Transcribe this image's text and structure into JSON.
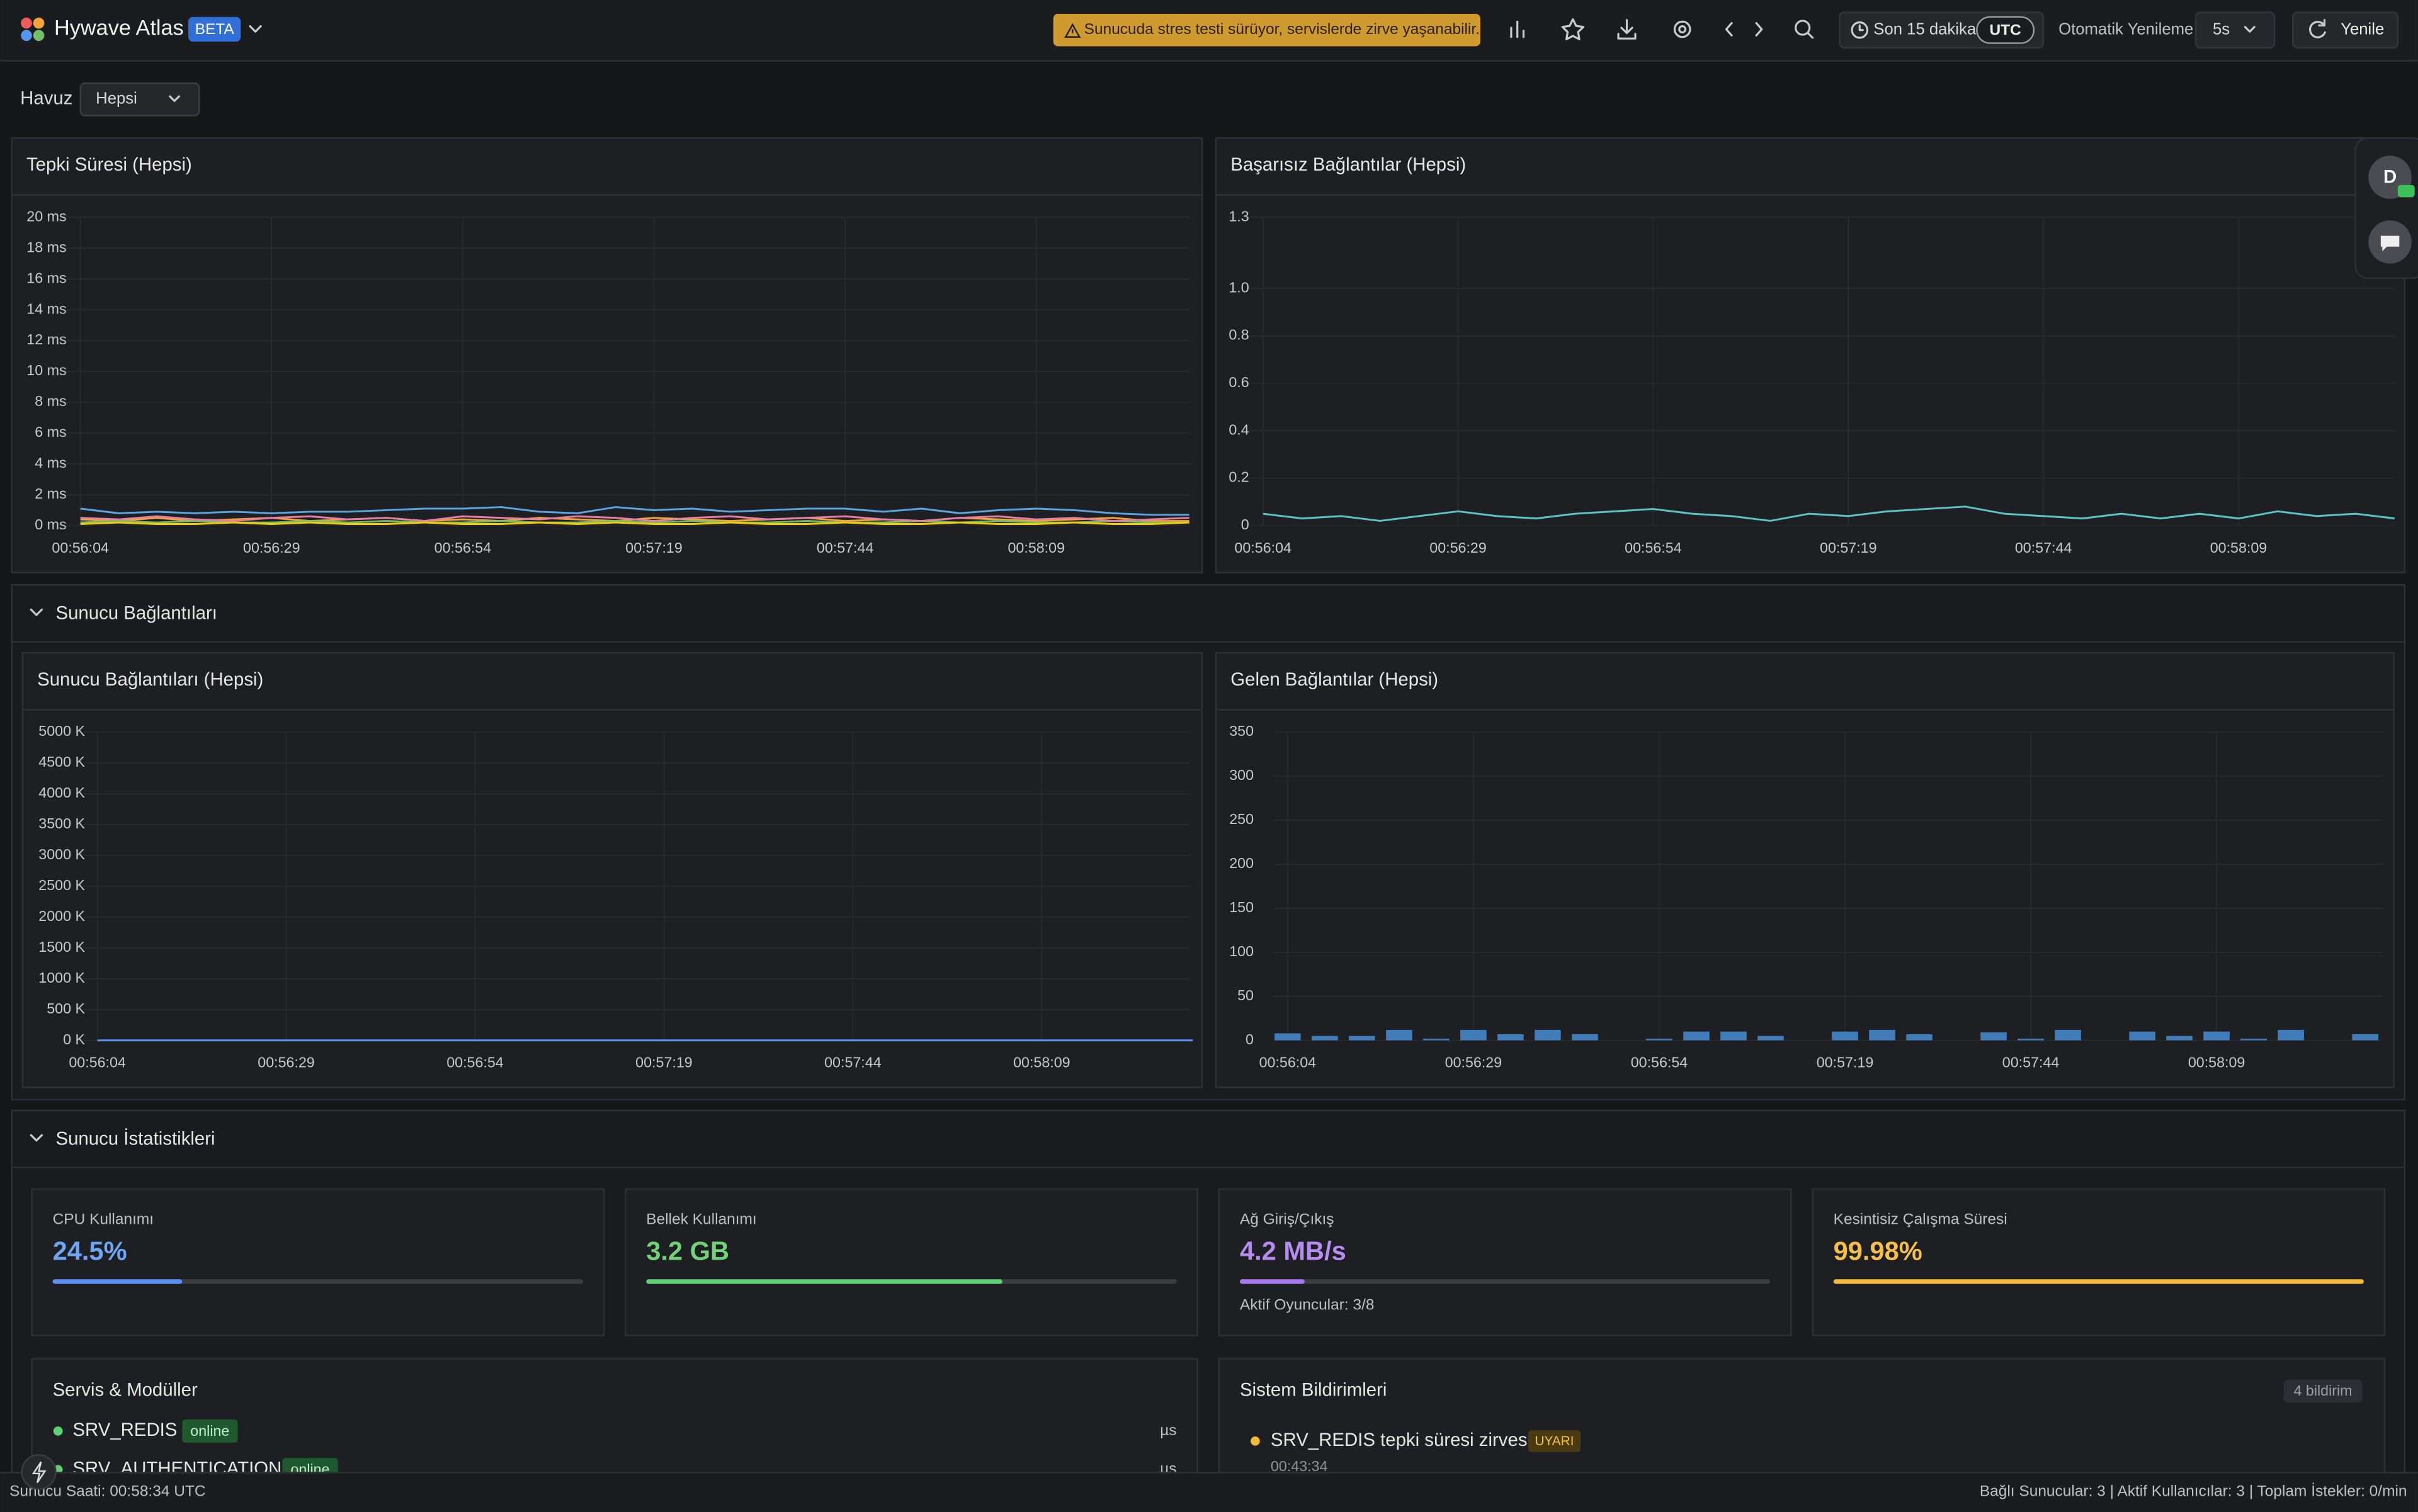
{
  "header": {
    "app_name": "Hywave Atlas",
    "badge": "BETA",
    "alert": "Sunucuda stres testi sürüyor, servislerde zirve yaşanabilir.",
    "time_range": "Son 15 dakika",
    "timezone": "UTC",
    "auto_refresh_label": "Otomatik Yenileme",
    "auto_refresh_value": "5s",
    "refresh_button": "Yenile"
  },
  "filter": {
    "label": "Havuz",
    "value": "Hepsi"
  },
  "sections": [
    "Sunucu Bağlantıları",
    "Sunucu İstatistikleri"
  ],
  "chart_data": [
    {
      "type": "line",
      "title": "Tepki Süresi (Hepsi)",
      "categories": [
        "00:56:04",
        null,
        null,
        null,
        null,
        "00:56:29",
        null,
        null,
        null,
        null,
        "00:56:54",
        null,
        null,
        null,
        null,
        "00:57:19",
        null,
        null,
        null,
        null,
        "00:57:44",
        null,
        null,
        null,
        null,
        "00:58:09",
        null,
        null,
        null,
        null
      ],
      "ylim": [
        0,
        20
      ],
      "yticks": [
        {
          "value": 0,
          "label": "0 ms"
        },
        {
          "value": 2,
          "label": "2 ms"
        },
        {
          "value": 4,
          "label": "4 ms"
        },
        {
          "value": 6,
          "label": "6 ms"
        },
        {
          "value": 8,
          "label": "8 ms"
        },
        {
          "value": 10,
          "label": "10 ms"
        },
        {
          "value": 12,
          "label": "12 ms"
        },
        {
          "value": 14,
          "label": "14 ms"
        },
        {
          "value": 16,
          "label": "16 ms"
        },
        {
          "value": 18,
          "label": "18 ms"
        },
        {
          "value": 20,
          "label": "20 ms"
        }
      ],
      "grid": true,
      "series": [
        {
          "color": "#5aa4e0",
          "values": [
            1.1,
            0.8,
            0.9,
            0.8,
            0.9,
            0.8,
            0.9,
            0.9,
            1.0,
            1.1,
            1.1,
            1.2,
            0.9,
            0.8,
            1.2,
            1.0,
            1.1,
            0.9,
            1.0,
            1.1,
            1.1,
            0.9,
            1.1,
            0.8,
            1.0,
            1.1,
            1.0,
            0.8,
            0.7,
            0.7
          ]
        },
        {
          "color": "#f2a33a",
          "values": [
            0.4,
            0.3,
            0.5,
            0.3,
            0.4,
            0.5,
            0.3,
            0.4,
            0.5,
            0.3,
            0.4,
            0.3,
            0.5,
            0.4,
            0.3,
            0.5,
            0.4,
            0.3,
            0.4,
            0.5,
            0.3,
            0.4,
            0.3,
            0.5,
            0.4,
            0.3,
            0.4,
            0.5,
            0.3,
            0.3
          ]
        },
        {
          "color": "#73bf69",
          "values": [
            0.2,
            0.3,
            0.2,
            0.3,
            0.2,
            0.2,
            0.3,
            0.2,
            0.3,
            0.2,
            0.2,
            0.3,
            0.2,
            0.2,
            0.3,
            0.2,
            0.3,
            0.2,
            0.2,
            0.3,
            0.2,
            0.2,
            0.3,
            0.2,
            0.3,
            0.2,
            0.2,
            0.3,
            0.2,
            0.2
          ]
        },
        {
          "color": "#e67fa6",
          "values": [
            0.5,
            0.4,
            0.6,
            0.4,
            0.3,
            0.5,
            0.6,
            0.4,
            0.5,
            0.3,
            0.6,
            0.5,
            0.4,
            0.6,
            0.5,
            0.3,
            0.5,
            0.6,
            0.4,
            0.5,
            0.6,
            0.4,
            0.3,
            0.5,
            0.6,
            0.4,
            0.5,
            0.3,
            0.4,
            0.5
          ]
        },
        {
          "color": "#f2cc0c",
          "values": [
            0.1,
            0.2,
            0.1,
            0.1,
            0.2,
            0.1,
            0.2,
            0.1,
            0.1,
            0.2,
            0.1,
            0.1,
            0.2,
            0.1,
            0.2,
            0.1,
            0.1,
            0.2,
            0.1,
            0.1,
            0.2,
            0.1,
            0.1,
            0.2,
            0.1,
            0.1,
            0.2,
            0.1,
            0.1,
            0.2
          ]
        }
      ]
    },
    {
      "type": "line",
      "title": "Başarısız Bağlantılar (Hepsi)",
      "categories": [
        "00:56:04",
        null,
        null,
        null,
        null,
        "00:56:29",
        null,
        null,
        null,
        null,
        "00:56:54",
        null,
        null,
        null,
        null,
        "00:57:19",
        null,
        null,
        null,
        null,
        "00:57:44",
        null,
        null,
        null,
        null,
        "00:58:09",
        null,
        null,
        null,
        null
      ],
      "ylim": [
        0,
        1.3
      ],
      "yticks": [
        0,
        0.2,
        0.4,
        0.6,
        0.8,
        {
          "value": 1,
          "label": "1.0"
        },
        1.3
      ],
      "grid": true,
      "color": "#5cc4c4",
      "values": [
        0.05,
        0.03,
        0.04,
        0.02,
        0.04,
        0.06,
        0.04,
        0.03,
        0.05,
        0.06,
        0.07,
        0.05,
        0.04,
        0.02,
        0.05,
        0.04,
        0.06,
        0.07,
        0.08,
        0.05,
        0.04,
        0.03,
        0.05,
        0.03,
        0.05,
        0.03,
        0.06,
        0.04,
        0.05,
        0.03
      ]
    },
    {
      "type": "line",
      "title": "Sunucu Bağlantıları (Hepsi)",
      "categories": [
        "00:56:04",
        null,
        null,
        null,
        null,
        "00:56:29",
        null,
        null,
        null,
        null,
        "00:56:54",
        null,
        null,
        null,
        null,
        "00:57:19",
        null,
        null,
        null,
        null,
        "00:57:44",
        null,
        null,
        null,
        null,
        "00:58:09",
        null,
        null,
        null,
        null
      ],
      "ylim": [
        0,
        5000000
      ],
      "yticks": [
        {
          "value": 0,
          "label": "0 K"
        },
        {
          "value": 500000,
          "label": "500 K"
        },
        {
          "value": 1000000,
          "label": "1000 K"
        },
        {
          "value": 1500000,
          "label": "1500 K"
        },
        {
          "value": 2000000,
          "label": "2000 K"
        },
        {
          "value": 2500000,
          "label": "2500 K"
        },
        {
          "value": 3000000,
          "label": "3000 K"
        },
        {
          "value": 3500000,
          "label": "3500 K"
        },
        {
          "value": 4000000,
          "label": "4000 K"
        },
        {
          "value": 4500000,
          "label": "4500 K"
        },
        {
          "value": 5000000,
          "label": "5000 K"
        }
      ],
      "grid": true,
      "color": "#5794f2",
      "values": [
        3,
        3,
        3,
        3,
        3,
        3,
        3,
        3,
        3,
        3,
        3,
        3,
        3,
        3,
        3,
        3,
        3,
        3,
        3,
        3,
        3,
        3,
        3,
        3,
        3,
        3,
        3,
        3,
        3,
        3
      ]
    },
    {
      "type": "bar",
      "title": "Gelen Bağlantılar (Hepsi)",
      "categories": [
        "00:56:04",
        null,
        null,
        null,
        null,
        "00:56:29",
        null,
        null,
        null,
        null,
        "00:56:54",
        null,
        null,
        null,
        null,
        "00:57:19",
        null,
        null,
        null,
        null,
        "00:57:44",
        null,
        null,
        null,
        null,
        "00:58:09",
        null,
        null,
        null,
        null
      ],
      "ylim": [
        0,
        350
      ],
      "yticks": [
        0,
        50,
        100,
        150,
        200,
        250,
        300,
        350
      ],
      "grid": true,
      "color": "#3f7cb8",
      "values": [
        8,
        5,
        5,
        12,
        2,
        12,
        7,
        12,
        7,
        0,
        2,
        10,
        10,
        5,
        0,
        10,
        12,
        7,
        0,
        9,
        2,
        12,
        0,
        10,
        5,
        10,
        2,
        12,
        0,
        7
      ]
    }
  ],
  "stats": [
    {
      "label": "CPU Kullanımı",
      "value": "24.5%"
    },
    {
      "label": "Bellek Kullanımı",
      "value": "3.2 GB"
    },
    {
      "label": "Ağ Giriş/Çıkış",
      "value": "4.2 MB/s",
      "note": "Aktif Oyuncular: 3/8"
    },
    {
      "label": "Kesintisiz Çalışma Süresi",
      "value": "99.98%"
    }
  ],
  "services": {
    "title": "Servis & Modüller",
    "items": [
      {
        "name": "SRV_REDIS",
        "status": "online",
        "unit": "µs"
      },
      {
        "name": "SRV_AUTHENTICATION",
        "status": "online",
        "unit": "µs"
      }
    ]
  },
  "notifications": {
    "title": "Sistem Bildirimleri",
    "count": "4 bildirim",
    "items": [
      {
        "text": "SRV_REDIS tepki süresi zirvesi",
        "level": "UYARI",
        "time": "00:43:34"
      }
    ]
  },
  "user": {
    "initial": "D"
  },
  "footer": {
    "server_time": "Sunucu Saati: 00:58:34 UTC",
    "status": "Bağlı Sunucular: 3 | Aktif Kullanıcılar: 3 | Toplam İstekler: 0/min"
  }
}
